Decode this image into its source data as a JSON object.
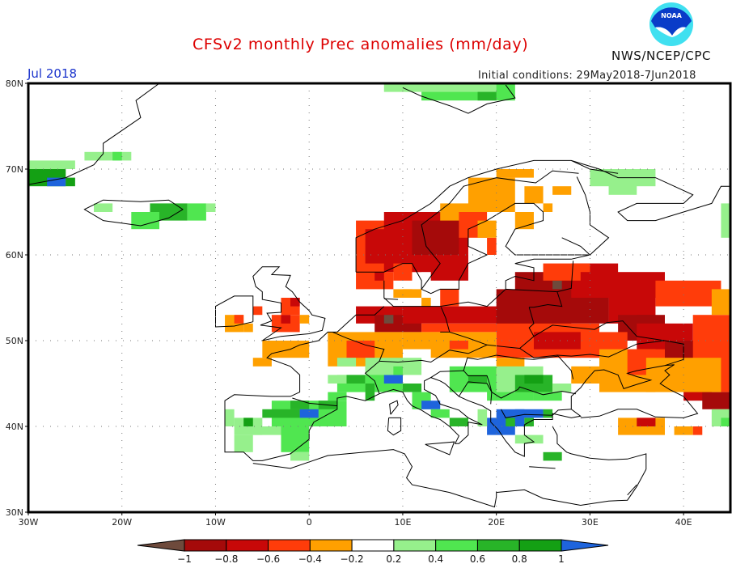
{
  "header": {
    "title": "CFSv2 monthly Prec anomalies (mm/day)",
    "month": "Jul 2018",
    "initial_conditions": "Initial conditions: 29May2018-7Jun2018",
    "agency": "NWS/NCEP/CPC",
    "logo_text": "NOAA",
    "logo_icon": "noaa-logo-icon"
  },
  "map": {
    "region": "Europe",
    "lon_range": [
      -30,
      45
    ],
    "lat_range": [
      30,
      80
    ],
    "lat_ticks": [
      "80N",
      "70N",
      "60N",
      "50N",
      "40N",
      "30N"
    ],
    "lat_values": [
      80,
      70,
      60,
      50,
      40,
      30
    ],
    "lon_ticks": [
      "30W",
      "20W",
      "10W",
      "0",
      "10E",
      "20E",
      "30E",
      "40E"
    ],
    "lon_values": [
      -30,
      -20,
      -10,
      0,
      10,
      20,
      30,
      40
    ],
    "grid": "dotted"
  },
  "colorbar": {
    "labels": [
      "-1",
      "-0.8",
      "-0.6",
      "-0.4",
      "-0.2",
      "0.2",
      "0.4",
      "0.6",
      "0.8",
      "1"
    ],
    "bins": [
      {
        "range": "< -1",
        "color": "#6e4a3c"
      },
      {
        "range": "-1 to -0.8",
        "color": "#a50a0a"
      },
      {
        "range": "-0.8 to -0.6",
        "color": "#c80808"
      },
      {
        "range": "-0.6 to -0.4",
        "color": "#ff3c0a"
      },
      {
        "range": "-0.4 to -0.2",
        "color": "#ffa000"
      },
      {
        "range": "-0.2 to 0.2",
        "color": "#ffffff"
      },
      {
        "range": "0.2 to 0.4",
        "color": "#96f08c"
      },
      {
        "range": "0.4 to 0.6",
        "color": "#50e650"
      },
      {
        "range": "0.6 to 0.8",
        "color": "#28b428"
      },
      {
        "range": "0.8 to 1",
        "color": "#14a014"
      },
      {
        "range": "> 1",
        "color": "#1e64dc"
      }
    ]
  },
  "anomaly_regions": [
    {
      "name": "Scandinavia (southern Norway/Sweden)",
      "level": "-1 to -0.6"
    },
    {
      "name": "Northern Finland",
      "level": "-0.4 to -0.2"
    },
    {
      "name": "Northern Germany/Poland/Baltics/Belarus",
      "level": "-1 to -0.6, locally < -1"
    },
    {
      "name": "Western Russia/Ukraine",
      "level": "-0.8 to -0.4"
    },
    {
      "name": "Iberia",
      "level": "0.2 to 0.8"
    },
    {
      "name": "Alps/Northern Italy",
      "level": "0.4 to > 1"
    },
    {
      "name": "Balkans/Northern Greece",
      "level": "0.4 to > 1"
    },
    {
      "name": "Iceland",
      "level": "0.2 to 0.8"
    },
    {
      "name": "Svalbard",
      "level": "0.2 to 0.6"
    }
  ]
}
